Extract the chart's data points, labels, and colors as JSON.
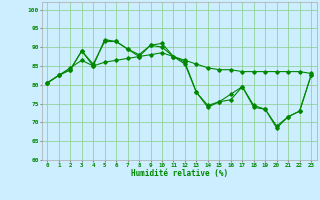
{
  "title": "",
  "xlabel": "Humidité relative (%)",
  "ylabel": "",
  "background_color": "#cceeff",
  "grid_color": "#88cc88",
  "line_color": "#008800",
  "marker_color": "#008800",
  "xlim": [
    -0.5,
    23.5
  ],
  "ylim": [
    60,
    102
  ],
  "yticks": [
    60,
    65,
    70,
    75,
    80,
    85,
    90,
    95,
    100
  ],
  "xticks": [
    0,
    1,
    2,
    3,
    4,
    5,
    6,
    7,
    8,
    9,
    10,
    11,
    12,
    13,
    14,
    15,
    16,
    17,
    18,
    19,
    20,
    21,
    22,
    23
  ],
  "series1": [
    80.5,
    82.5,
    84.0,
    89.0,
    85.0,
    92.0,
    91.5,
    89.5,
    88.0,
    90.5,
    90.0,
    87.5,
    85.5,
    78.0,
    74.5,
    75.5,
    77.5,
    79.5,
    74.5,
    73.5,
    69.0,
    71.5,
    73.0,
    82.5
  ],
  "series2": [
    80.5,
    82.5,
    84.5,
    86.5,
    85.0,
    86.0,
    86.5,
    87.0,
    87.5,
    88.0,
    88.5,
    87.5,
    86.5,
    85.5,
    84.5,
    84.0,
    84.0,
    83.5,
    83.5,
    83.5,
    83.5,
    83.5,
    83.5,
    83.0
  ],
  "series3": [
    80.5,
    82.5,
    84.0,
    89.0,
    85.5,
    91.5,
    91.5,
    89.5,
    87.5,
    90.5,
    91.0,
    87.5,
    86.0,
    78.0,
    74.0,
    75.5,
    76.0,
    79.5,
    74.0,
    73.5,
    68.5,
    71.5,
    73.0,
    82.5
  ]
}
